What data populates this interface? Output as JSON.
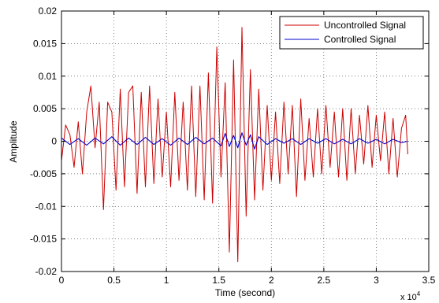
{
  "chart_data": {
    "type": "line",
    "title": "",
    "xlabel": "Time (second)",
    "ylabel": "Amplitude",
    "x_multiplier_label": "x 10",
    "x_multiplier_exponent": "4",
    "xlim": [
      0,
      35000
    ],
    "ylim": [
      -0.02,
      0.02
    ],
    "xticks": [
      0,
      5000,
      10000,
      15000,
      20000,
      25000,
      30000,
      35000
    ],
    "xtick_labels": [
      "0",
      "0.5",
      "1",
      "1.5",
      "2",
      "2.5",
      "3",
      "3.5"
    ],
    "yticks": [
      -0.02,
      -0.015,
      -0.01,
      -0.005,
      0,
      0.005,
      0.01,
      0.015,
      0.02
    ],
    "ytick_labels": [
      "-0.02",
      "-0.015",
      "-0.01",
      "-0.005",
      "0",
      "0.005",
      "0.01",
      "0.015",
      "0.02"
    ],
    "grid": true,
    "legend_position": "top-right",
    "series": [
      {
        "name": "Uncontrolled Signal",
        "color": "#cc0000",
        "x": [
          0,
          400,
          800,
          1200,
          1600,
          2000,
          2400,
          2800,
          3200,
          3600,
          4000,
          4400,
          4800,
          5200,
          5600,
          6000,
          6400,
          6800,
          7200,
          7600,
          8000,
          8400,
          8800,
          9200,
          9600,
          10000,
          10400,
          10800,
          11200,
          11600,
          12000,
          12400,
          12800,
          13200,
          13600,
          14000,
          14400,
          14800,
          15200,
          15600,
          16000,
          16400,
          16800,
          17200,
          17600,
          18000,
          18400,
          18800,
          19200,
          19600,
          20000,
          20400,
          20800,
          21200,
          21600,
          22000,
          22400,
          22800,
          23200,
          23600,
          24000,
          24400,
          24800,
          25200,
          25600,
          26000,
          26400,
          26800,
          27200,
          27600,
          28000,
          28400,
          28800,
          29200,
          29600,
          30000,
          30400,
          30800,
          31200,
          31600,
          32000,
          32400,
          32800,
          33000
        ],
        "y": [
          -0.003,
          0.0025,
          0.001,
          -0.004,
          0.003,
          -0.005,
          0.0045,
          0.0085,
          -0.001,
          0.006,
          -0.0105,
          0.006,
          0.0045,
          -0.0075,
          0.008,
          -0.007,
          0.0075,
          0.0085,
          -0.008,
          0.0075,
          -0.007,
          0.0085,
          -0.0065,
          0.0065,
          -0.0055,
          0.0045,
          -0.007,
          0.0075,
          -0.006,
          0.006,
          -0.0075,
          0.0085,
          -0.0085,
          0.0085,
          -0.009,
          0.0105,
          -0.0095,
          0.0145,
          -0.0055,
          0.009,
          -0.017,
          0.0125,
          -0.0185,
          0.0175,
          -0.0115,
          0.011,
          -0.009,
          0.008,
          -0.0075,
          0.0055,
          -0.006,
          0.0045,
          -0.0065,
          0.006,
          -0.005,
          0.0055,
          -0.0085,
          0.0065,
          -0.006,
          0.0035,
          -0.0055,
          0.005,
          -0.005,
          0.0055,
          -0.004,
          0.0045,
          -0.0055,
          0.005,
          -0.006,
          0.005,
          -0.005,
          0.004,
          -0.0035,
          0.0055,
          -0.004,
          0.004,
          -0.003,
          0.0045,
          -0.005,
          0.0035,
          -0.0055,
          0.002,
          0.004,
          -0.002
        ]
      },
      {
        "name": "Controlled Signal",
        "color": "#0000cc",
        "x": [
          0,
          800,
          1600,
          2400,
          3200,
          4000,
          4800,
          5600,
          6400,
          7200,
          8000,
          8800,
          9600,
          10400,
          11200,
          12000,
          12800,
          13600,
          14400,
          15200,
          15600,
          16000,
          16400,
          16800,
          17200,
          17600,
          18000,
          18400,
          18800,
          19600,
          20400,
          21200,
          22000,
          22800,
          23600,
          24400,
          25200,
          26000,
          26800,
          27600,
          28400,
          29200,
          30000,
          30800,
          31600,
          32400,
          33000
        ],
        "y": [
          0.0005,
          -0.0005,
          0.0004,
          -0.0006,
          0.0005,
          -0.0004,
          0.0007,
          -0.0006,
          0.0005,
          -0.0005,
          0.0006,
          -0.0005,
          0.0004,
          -0.0006,
          0.0005,
          -0.0005,
          0.0006,
          -0.0004,
          0.0005,
          -0.0007,
          0.0012,
          -0.0008,
          0.0009,
          -0.001,
          0.0013,
          -0.0006,
          0.001,
          -0.0012,
          0.0007,
          -0.0005,
          0.0004,
          -0.0003,
          0.0004,
          -0.0005,
          0.0004,
          -0.0003,
          0.0004,
          -0.0004,
          0.0003,
          -0.0004,
          0.0004,
          -0.0003,
          0.0003,
          -0.0004,
          0.0003,
          -0.0002,
          0.0
        ]
      }
    ]
  }
}
